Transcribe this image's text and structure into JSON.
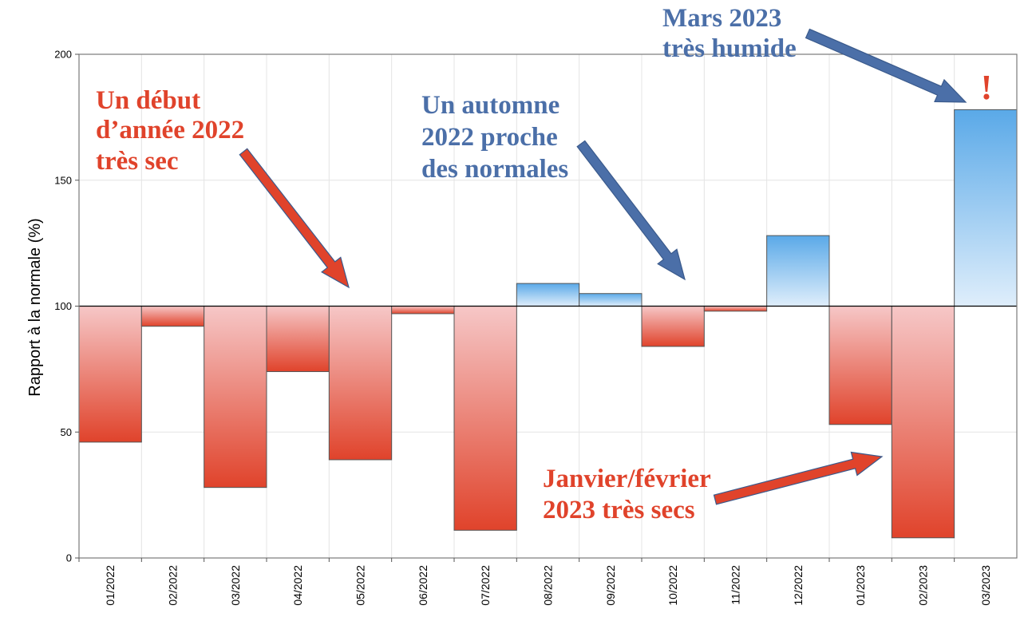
{
  "chart_data": {
    "type": "bar",
    "ylabel": "Rapport à la normale (%)",
    "xlabel": "",
    "ylim": [
      0,
      200
    ],
    "baseline": 100,
    "yticks": [
      "0",
      "50",
      "100",
      "150",
      "200"
    ],
    "grid": true,
    "categories": [
      "01/2022",
      "02/2022",
      "03/2022",
      "04/2022",
      "05/2022",
      "06/2022",
      "07/2022",
      "08/2022",
      "09/2022",
      "10/2022",
      "11/2022",
      "12/2022",
      "01/2023",
      "02/2023",
      "03/2023"
    ],
    "values": [
      46,
      92,
      28,
      74,
      39,
      97,
      11,
      109,
      105,
      84,
      98,
      128,
      53,
      8,
      178
    ],
    "colors": {
      "below": "#e0432b",
      "below_light": "#f6c7c7",
      "above": "#5aa9e8",
      "above_light": "#dfeefb"
    },
    "annotations": [
      {
        "id": "ann-dry-2022",
        "color": "red",
        "lines": [
          "Un début",
          "d’année 2022",
          "très sec"
        ]
      },
      {
        "id": "ann-autumn-2022",
        "color": "blue",
        "lines": [
          "Un automne",
          "2022 proche",
          "des normales"
        ]
      },
      {
        "id": "ann-march-2023",
        "color": "blue",
        "lines": [
          "Mars 2023",
          "très humide"
        ]
      },
      {
        "id": "ann-janfeb-2023",
        "color": "red",
        "lines": [
          "Janvier/février",
          "2023 très secs"
        ]
      }
    ],
    "exclamation": "!"
  }
}
